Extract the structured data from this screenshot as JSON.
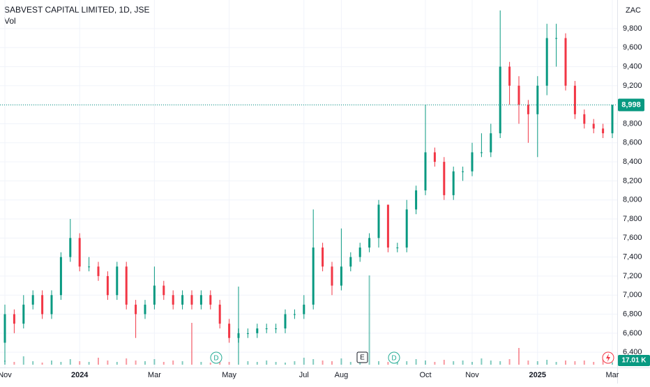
{
  "chart_data": {
    "type": "candlestick",
    "title": "SABVEST CAPITAL LIMITED, 1D, JSE",
    "subtitle": "Vol",
    "currency": "ZAC",
    "categories": [
      "Nov",
      null,
      null,
      null,
      null,
      null,
      null,
      null,
      "2024",
      null,
      null,
      null,
      null,
      null,
      null,
      null,
      "Mar",
      null,
      null,
      null,
      null,
      null,
      null,
      null,
      "May",
      null,
      null,
      null,
      null,
      null,
      null,
      null,
      "Jul",
      null,
      null,
      null,
      "Aug",
      null,
      null,
      null,
      null,
      null,
      null,
      null,
      null,
      "Oct",
      null,
      null,
      null,
      null,
      "Nov",
      null,
      null,
      null,
      null,
      null,
      null,
      "2025",
      null,
      null,
      null,
      null,
      null,
      null,
      null,
      "Mar"
    ],
    "open": [
      6500,
      6800,
      6700,
      6900,
      7000,
      6800,
      7000,
      7400,
      7600,
      7300,
      7300,
      7200,
      7000,
      7300,
      6900,
      6800,
      6900,
      7100,
      7000,
      6900,
      7000,
      6900,
      7000,
      6900,
      6700,
      6550,
      6600,
      6600,
      6650,
      6650,
      6650,
      6800,
      6800,
      6900,
      7500,
      7300,
      7100,
      7300,
      7400,
      7500,
      7600,
      7950,
      7500,
      7500,
      7900,
      8100,
      8500,
      8400,
      8050,
      8300,
      8300,
      8500,
      8500,
      8700,
      9400,
      9200,
      9000,
      8900,
      9200,
      9700,
      9700,
      9200,
      8900,
      8800,
      8750,
      8700
    ],
    "high": [
      6900,
      6850,
      7000,
      7050,
      7050,
      7050,
      7450,
      7800,
      7650,
      7400,
      7350,
      7250,
      7350,
      7350,
      6950,
      6950,
      7300,
      7150,
      7050,
      7050,
      7050,
      7050,
      7050,
      6950,
      6750,
      6650,
      6650,
      6700,
      6700,
      6700,
      6850,
      6850,
      7000,
      7900,
      7550,
      7350,
      7700,
      7450,
      7550,
      7650,
      8000,
      7950,
      7550,
      8000,
      8150,
      9000,
      8550,
      8450,
      8350,
      8350,
      8600,
      8700,
      8800,
      9990,
      9450,
      9300,
      9050,
      9300,
      9850,
      9850,
      9750,
      9250,
      8950,
      8850,
      8800,
      9000
    ],
    "low": [
      6300,
      6600,
      6650,
      6850,
      6750,
      6750,
      6950,
      7350,
      7250,
      7250,
      7150,
      6950,
      6950,
      6850,
      6550,
      6750,
      6850,
      6950,
      6850,
      6850,
      6850,
      6850,
      6850,
      6650,
      6500,
      6500,
      6550,
      6550,
      6600,
      6600,
      6600,
      6750,
      6750,
      6850,
      7250,
      7000,
      7050,
      7250,
      7350,
      7450,
      7500,
      7450,
      7450,
      7450,
      7850,
      8050,
      8350,
      8000,
      8000,
      8200,
      8250,
      8450,
      8450,
      8650,
      9000,
      8800,
      8600,
      8450,
      9100,
      9400,
      9150,
      8850,
      8750,
      8700,
      8650,
      8650
    ],
    "close": [
      6800,
      6700,
      6900,
      7000,
      6800,
      7000,
      7400,
      7600,
      7300,
      7300,
      7200,
      7000,
      7300,
      6900,
      6800,
      6900,
      7100,
      7000,
      6900,
      7000,
      6900,
      7000,
      6900,
      6700,
      6550,
      6600,
      6600,
      6650,
      6650,
      6650,
      6800,
      6800,
      6900,
      7500,
      7300,
      7100,
      7300,
      7400,
      7500,
      7600,
      7950,
      7500,
      7500,
      7900,
      8100,
      8500,
      8400,
      8050,
      8300,
      8300,
      8500,
      8500,
      8700,
      9400,
      9200,
      9000,
      8900,
      9200,
      9700,
      9700,
      9200,
      8900,
      8800,
      8750,
      8700,
      8998
    ],
    "last_price_label": "8,998",
    "volume": [
      30000,
      20000,
      60000,
      25000,
      15000,
      30000,
      20000,
      40000,
      25000,
      20000,
      50000,
      30000,
      20000,
      45000,
      30000,
      25000,
      40000,
      20000,
      30000,
      25000,
      300000,
      20000,
      15000,
      30000,
      20000,
      560000,
      25000,
      20000,
      30000,
      20000,
      15000,
      25000,
      50000,
      40000,
      30000,
      25000,
      45000,
      20000,
      30000,
      640000,
      25000,
      20000,
      30000,
      25000,
      40000,
      30000,
      20000,
      35000,
      25000,
      30000,
      20000,
      45000,
      30000,
      25000,
      40000,
      120000,
      30000,
      25000,
      35000,
      20000,
      30000,
      25000,
      30000,
      20000,
      40000,
      17010
    ],
    "volume_last_label": "17.01 K",
    "vlim": [
      0,
      1000000
    ],
    "up_color": "#089981",
    "down_color": "#f23645",
    "ylim": [
      6240,
      10100
    ],
    "yticks": [
      {
        "value": 6400,
        "label": "6,400"
      },
      {
        "value": 6600,
        "label": "6,600"
      },
      {
        "value": 6800,
        "label": "6,800"
      },
      {
        "value": 7000,
        "label": "7,000"
      },
      {
        "value": 7200,
        "label": "7,200"
      },
      {
        "value": 7400,
        "label": "7,400"
      },
      {
        "value": 7600,
        "label": "7,600"
      },
      {
        "value": 7800,
        "label": "7,800"
      },
      {
        "value": 8000,
        "label": "8,000"
      },
      {
        "value": 8200,
        "label": "8,200"
      },
      {
        "value": 8400,
        "label": "8,400"
      },
      {
        "value": 8600,
        "label": "8,600"
      },
      {
        "value": 8800,
        "label": "8,800"
      },
      {
        "value": 9000,
        "label": "9,000"
      },
      {
        "value": 9200,
        "label": "9,200"
      },
      {
        "value": 9400,
        "label": "9,400"
      },
      {
        "value": 9600,
        "label": "9,600"
      },
      {
        "value": 9800,
        "label": "9,800"
      }
    ],
    "grid": true,
    "events": [
      "D",
      "E",
      "D"
    ]
  }
}
